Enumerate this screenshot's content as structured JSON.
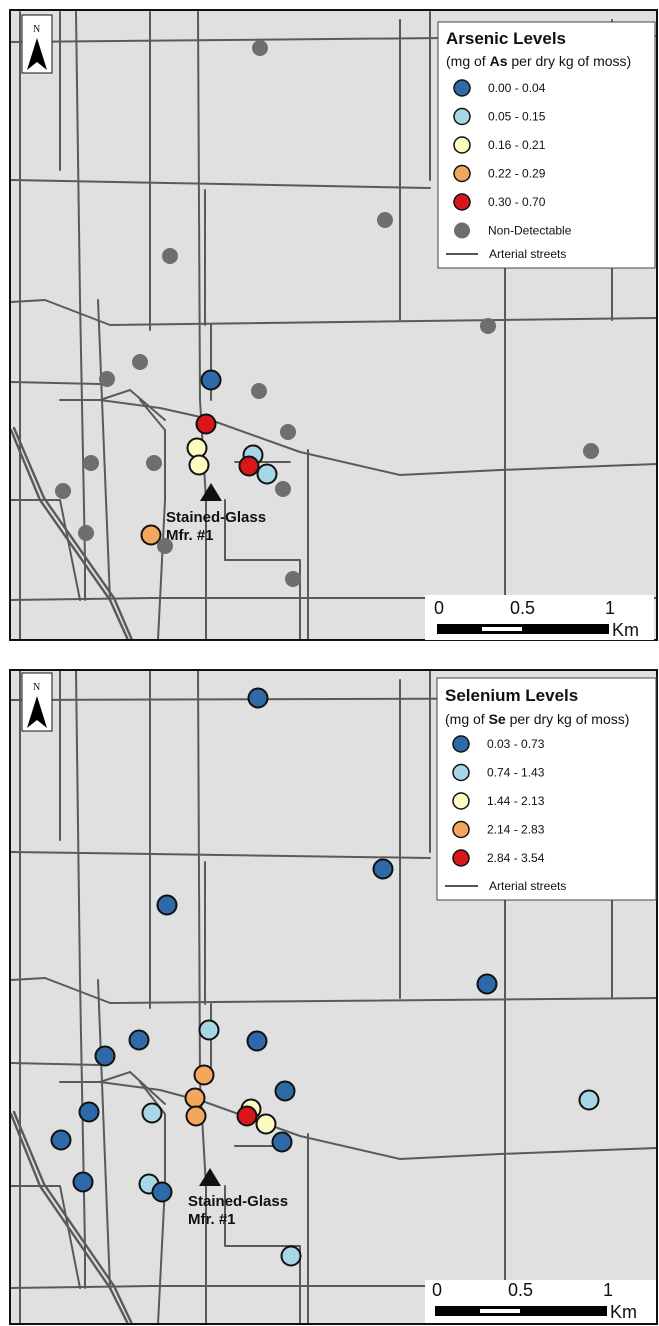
{
  "maps": [
    {
      "legend": {
        "title": "Arsenic Levels",
        "subtitle_prefix": "(mg of ",
        "subtitle_bold": "As",
        "subtitle_suffix": " per dry kg of moss)",
        "classes": [
          {
            "label": "0.00 - 0.04",
            "color": "#2e6aa8"
          },
          {
            "label": "0.05 - 0.15",
            "color": "#a7d6e6"
          },
          {
            "label": "0.16 - 0.21",
            "color": "#fdfbbf"
          },
          {
            "label": "0.22 - 0.29",
            "color": "#f3a65d"
          },
          {
            "label": "0.30 - 0.70",
            "color": "#d8161b"
          },
          {
            "label": "Non-Detectable",
            "color": "#6e6e6e"
          }
        ],
        "streets_label": "Arterial streets"
      },
      "site_label_1": "Stained-Glass",
      "site_label_2": "Mfr. #1",
      "north": "N",
      "scale": {
        "ticks": [
          "0",
          "0.5",
          "1"
        ],
        "unit": "Km"
      },
      "points_colors": [
        "#6e6e6e",
        "#6e6e6e",
        "#6e6e6e",
        "#6e6e6e",
        "#6e6e6e",
        "#6e6e6e",
        "#6e6e6e",
        "#2e6aa8",
        "#6e6e6e",
        "#d8161b",
        "#6e6e6e",
        "#fdfbbf",
        "#fdfbbf",
        "#a7d6e6",
        "#d8161b",
        "#a7d6e6",
        "#6e6e6e",
        "#6e6e6e",
        "#6e6e6e",
        "#6e6e6e",
        "#6e6e6e",
        "#f3a65d",
        "#6e6e6e",
        "#6e6e6e"
      ]
    },
    {
      "legend": {
        "title": "Selenium Levels",
        "subtitle_prefix": "(mg of ",
        "subtitle_bold": "Se",
        "subtitle_suffix": " per dry kg of moss)",
        "classes": [
          {
            "label": "0.03 - 0.73",
            "color": "#2e6aa8"
          },
          {
            "label": "0.74 - 1.43",
            "color": "#a7d6e6"
          },
          {
            "label": "1.44 - 2.13",
            "color": "#fdfbbf"
          },
          {
            "label": "2.14 - 2.83",
            "color": "#f3a65d"
          },
          {
            "label": "2.84 - 3.54",
            "color": "#d8161b"
          }
        ],
        "streets_label": "Arterial streets"
      },
      "site_label_1": "Stained-Glass",
      "site_label_2": "Mfr. #1",
      "north": "N",
      "scale": {
        "ticks": [
          "0",
          "0.5",
          "1"
        ],
        "unit": "Km"
      },
      "points_colors": [
        "#2e6aa8",
        "#2e6aa8",
        "#2e6aa8",
        "#2e6aa8",
        "#2e6aa8",
        "#2e6aa8",
        "#2e6aa8",
        "#a7d6e6",
        "#2e6aa8",
        "#f3a65d",
        "#2e6aa8",
        "#f3a65d",
        "#f3a65d",
        "#fdfbbf",
        "#d8161b",
        "#fdfbbf",
        "#a7d6e6",
        "#2e6aa8",
        "#2e6aa8",
        "#2e6aa8",
        "#a7d6e6",
        "#a7d6e6",
        "#2e6aa8",
        "#a7d6e6"
      ]
    }
  ]
}
